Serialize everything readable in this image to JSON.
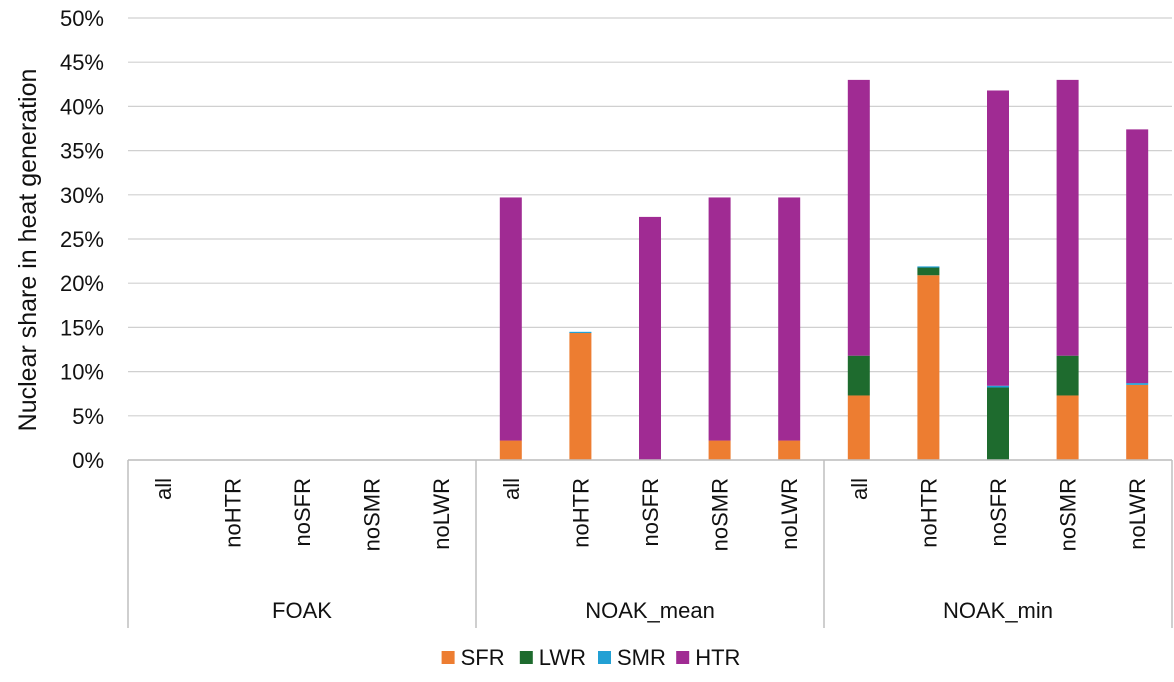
{
  "chart_data": {
    "type": "bar",
    "stacked": true,
    "ylabel": "Nuclear share in heat generation",
    "ylim": [
      0,
      50
    ],
    "yticks": [
      "0%",
      "5%",
      "10%",
      "15%",
      "20%",
      "25%",
      "30%",
      "35%",
      "40%",
      "45%",
      "50%"
    ],
    "grid": true,
    "legend_position": "bottom",
    "groups": [
      {
        "name": "FOAK",
        "categories": [
          "all",
          "noHTR",
          "noSFR",
          "noSMR",
          "noLWR"
        ]
      },
      {
        "name": "NOAK_mean",
        "categories": [
          "all",
          "noHTR",
          "noSFR",
          "noSMR",
          "noLWR"
        ]
      },
      {
        "name": "NOAK_min",
        "categories": [
          "all",
          "noHTR",
          "noSFR",
          "noSMR",
          "noLWR"
        ]
      }
    ],
    "series": [
      {
        "name": "SFR",
        "color": "#ED7D31",
        "values": [
          0,
          0,
          0,
          0,
          0,
          2.2,
          14.4,
          0,
          2.2,
          2.2,
          7.3,
          20.9,
          0,
          7.3,
          8.5
        ]
      },
      {
        "name": "LWR",
        "color": "#1E6B2E",
        "values": [
          0,
          0,
          0,
          0,
          0,
          0,
          0,
          0,
          0,
          0,
          4.5,
          0.9,
          8.2,
          4.5,
          0
        ]
      },
      {
        "name": "SMR",
        "color": "#22A0D4",
        "values": [
          0,
          0,
          0,
          0,
          0,
          0,
          0.1,
          0,
          0,
          0,
          0,
          0.1,
          0.2,
          0,
          0.2
        ]
      },
      {
        "name": "HTR",
        "color": "#A02B93",
        "values": [
          0,
          0,
          0,
          0,
          0,
          27.5,
          0,
          27.5,
          27.5,
          27.5,
          31.2,
          0,
          33.4,
          31.2,
          28.7
        ]
      }
    ]
  }
}
